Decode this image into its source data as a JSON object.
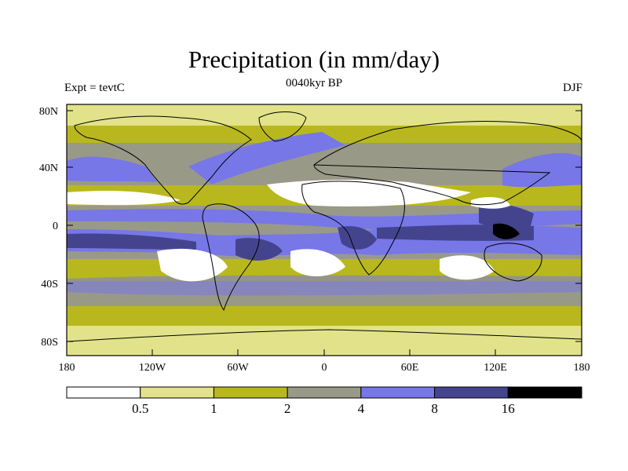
{
  "title": "Precipitation (in mm/day)",
  "experiment_label": "Expt = tevtC",
  "period_label": "0040kyr BP",
  "season_label": "DJF",
  "latitude_labels": [
    "80N",
    "40N",
    "0",
    "40S",
    "80S"
  ],
  "longitude_labels": [
    "180",
    "120W",
    "60W",
    "0",
    "60E",
    "120E",
    "180"
  ],
  "colorbar": {
    "tick_labels": [
      "0.5",
      "1",
      "2",
      "4",
      "8",
      "16"
    ],
    "colors": [
      "#ffffff",
      "#e2e28a",
      "#b8b81e",
      "#999988",
      "#7777e8",
      "#44448e",
      "#000000"
    ]
  },
  "map": {
    "land_color": "#ffffff",
    "coastline_color": "#000000"
  }
}
